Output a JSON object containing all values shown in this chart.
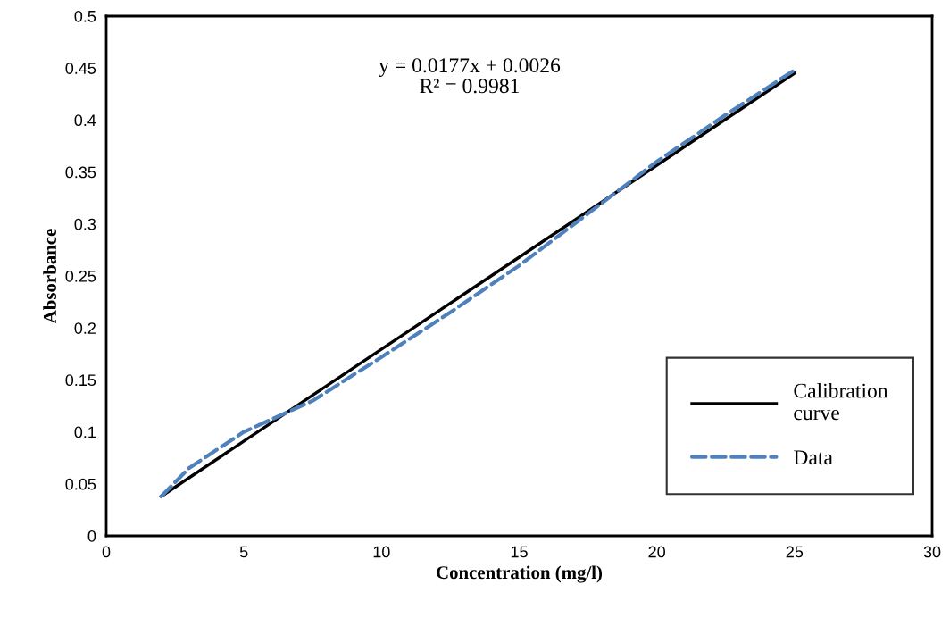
{
  "chart_data": {
    "type": "line",
    "xlabel": "Concentration (mg/l)",
    "ylabel": "Absorbance",
    "annotations": [
      "y = 0.0177x + 0.0026\nR² = 0.9981"
    ],
    "series": [
      {
        "name": "Calibration\ncurve",
        "color": "#000000",
        "line_style": "solid",
        "x": [
          2,
          25
        ],
        "values": [
          0.038,
          0.445
        ]
      },
      {
        "name": "Data",
        "color": "#4f81bd",
        "line_style": "dashed",
        "x": [
          2,
          3,
          5,
          7.5,
          10,
          12.5,
          15,
          17.5,
          20,
          22.5,
          25
        ],
        "values": [
          0.038,
          0.065,
          0.1,
          0.13,
          0.172,
          0.215,
          0.26,
          0.31,
          0.36,
          0.405,
          0.448
        ]
      }
    ],
    "xlim": [
      0,
      30
    ],
    "xticks": [
      0,
      5,
      10,
      15,
      20,
      25,
      30
    ],
    "ylim": [
      0,
      0.5
    ],
    "yticks": [
      0,
      0.05,
      0.1,
      0.15,
      0.2,
      0.25,
      0.3,
      0.35,
      0.4,
      0.45,
      0.5
    ],
    "grid": false,
    "legend": "bottom right",
    "marker": "none"
  }
}
